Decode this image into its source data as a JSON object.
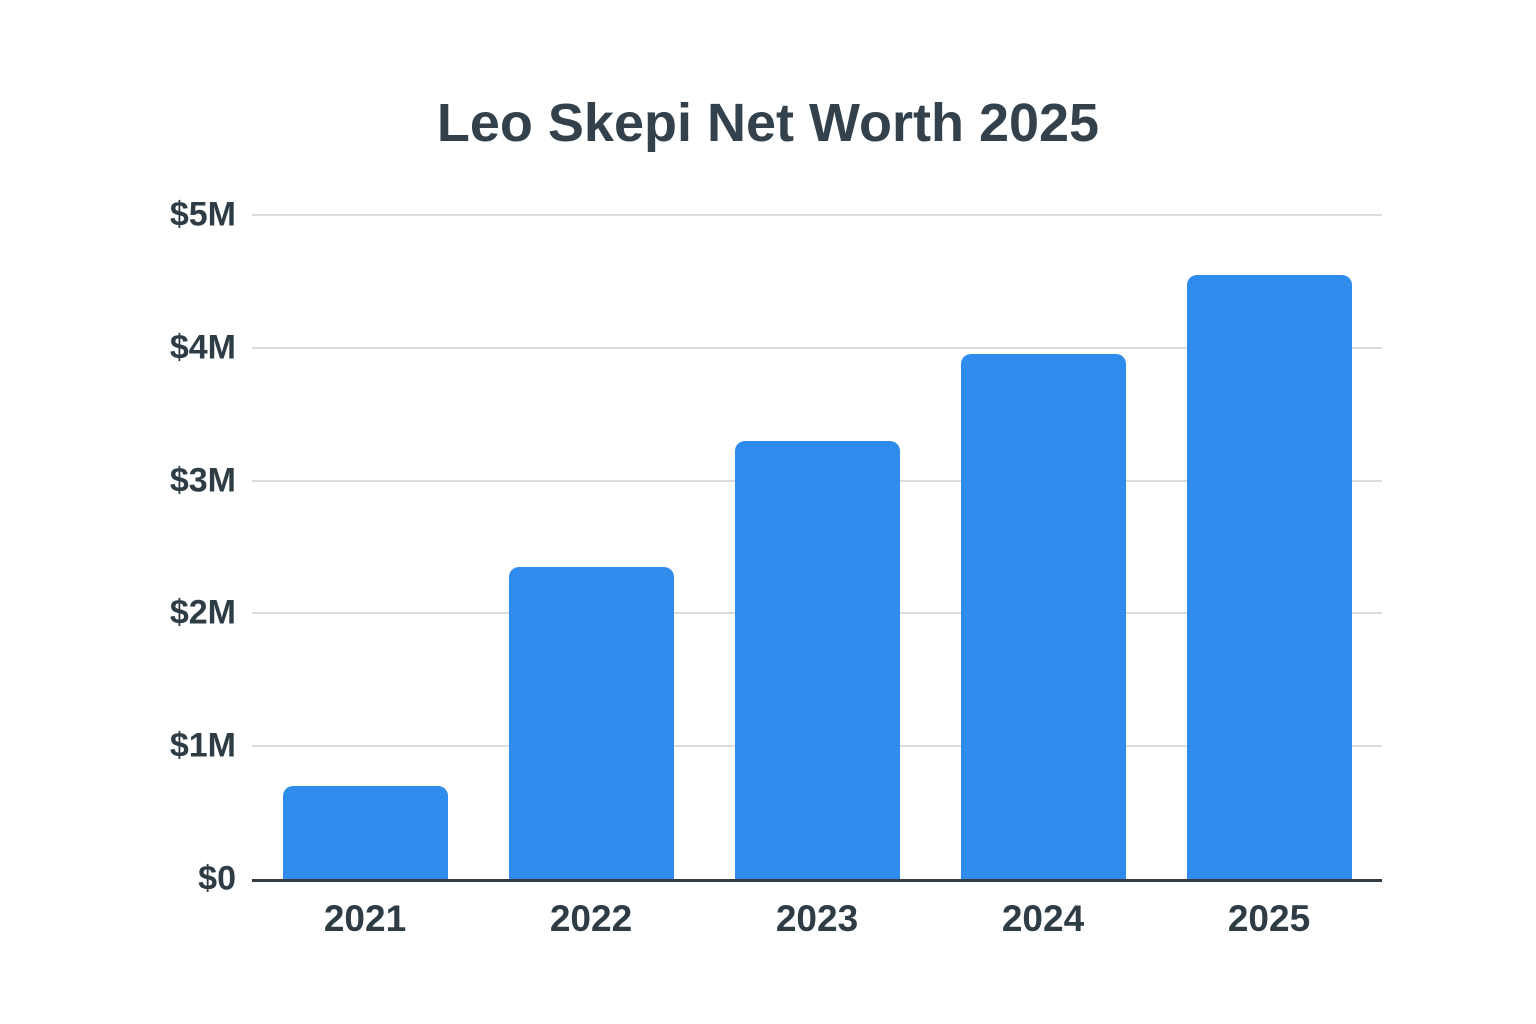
{
  "chart_data": {
    "type": "bar",
    "title": "Leo Skepi Net Worth 2025",
    "categories": [
      "2021",
      "2022",
      "2023",
      "2024",
      "2025"
    ],
    "values": [
      0.7,
      2.35,
      3.3,
      3.95,
      4.55
    ],
    "value_unit": "USD millions",
    "xlabel": "",
    "ylabel": "",
    "ylim": [
      0,
      5
    ],
    "yticks": [
      {
        "value": 0,
        "label": "$0"
      },
      {
        "value": 1,
        "label": "$1M"
      },
      {
        "value": 2,
        "label": "$2M"
      },
      {
        "value": 3,
        "label": "$3M"
      },
      {
        "value": 4,
        "label": "$4M"
      },
      {
        "value": 5,
        "label": "$5M"
      }
    ],
    "grid": true,
    "legend": false,
    "colors": {
      "bar": "#2F8BEC",
      "gridline": "#D9DCDE",
      "axis_line": "#343C43",
      "tick_text": "#2E3C46",
      "title_text": "#32414B",
      "background": "#FFFFFF"
    }
  }
}
